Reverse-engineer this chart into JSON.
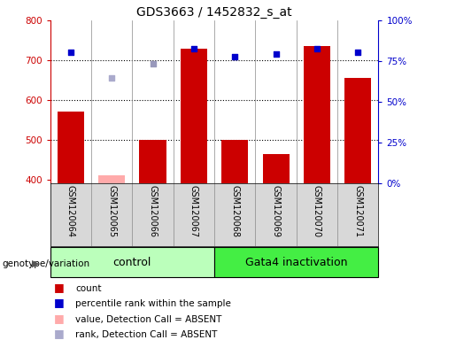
{
  "title": "GDS3663 / 1452832_s_at",
  "samples": [
    "GSM120064",
    "GSM120065",
    "GSM120066",
    "GSM120067",
    "GSM120068",
    "GSM120069",
    "GSM120070",
    "GSM120071"
  ],
  "count_values": [
    570,
    410,
    500,
    730,
    500,
    465,
    735,
    655
  ],
  "count_absent": [
    false,
    true,
    false,
    false,
    false,
    false,
    false,
    false
  ],
  "percentile_values": [
    720,
    null,
    690,
    730,
    710,
    715,
    730,
    720
  ],
  "percentile_absent": [
    false,
    false,
    true,
    false,
    false,
    false,
    false,
    false
  ],
  "rank_absent_values": [
    null,
    655,
    null,
    null,
    null,
    null,
    null,
    null
  ],
  "ylim_left": [
    390,
    800
  ],
  "ylim_right": [
    0,
    100
  ],
  "yticks_left": [
    400,
    500,
    600,
    700,
    800
  ],
  "yticks_right": [
    0,
    25,
    50,
    75,
    100
  ],
  "bar_color": "#cc0000",
  "absent_bar_color": "#ffaaaa",
  "dot_color": "#0000cc",
  "absent_dot_color": "#9999bb",
  "rank_absent_color": "#aaaacc",
  "control_color": "#bbffbb",
  "gata4_color": "#44ee44",
  "title_fontsize": 10,
  "legend_fontsize": 7.5,
  "axis_color_left": "#cc0000",
  "axis_color_right": "#0000cc"
}
